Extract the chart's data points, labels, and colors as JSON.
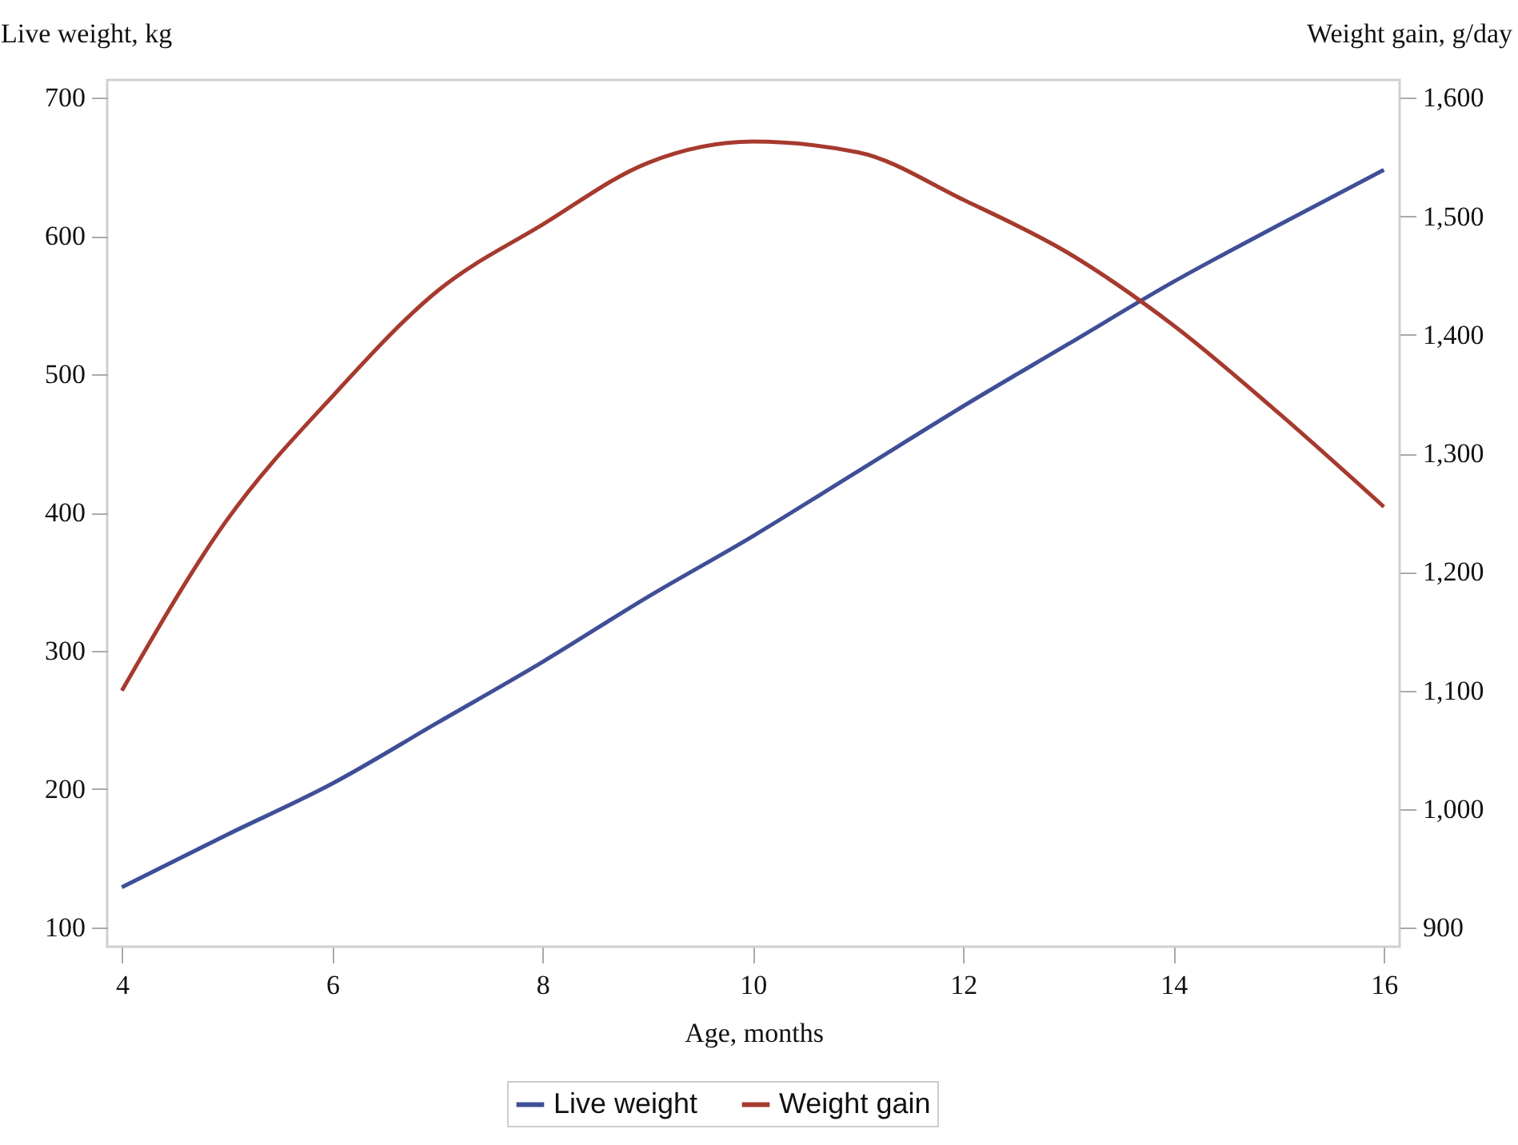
{
  "chart_data": {
    "type": "line",
    "xlabel": "Age, months",
    "ylabel": "Live weight, kg",
    "y2label": "Weight gain, g/day",
    "x": [
      4,
      5,
      6,
      7,
      8,
      9,
      10,
      11,
      12,
      13,
      14,
      15,
      16
    ],
    "series": [
      {
        "name": "Live weight",
        "color": "#3f4f97",
        "values": [
          129,
          167,
          204,
          248,
          292,
          339,
          383,
          430,
          477,
          522,
          567,
          608,
          648
        ]
      },
      {
        "name": "Weight gain",
        "color": "#a63a2e",
        "axis": "y2",
        "values": [
          1100,
          1244,
          1348,
          1437,
          1493,
          1545,
          1563,
          1554,
          1514,
          1469,
          1408,
          1334,
          1255
        ]
      }
    ],
    "xlim": [
      3.86,
      16.15
    ],
    "xticks": [
      4,
      6,
      8,
      10,
      12,
      14,
      16
    ],
    "ylim": [
      86,
      713
    ],
    "yticks": [
      100,
      200,
      300,
      400,
      500,
      600,
      700
    ],
    "y2lim": [
      884,
      1615
    ],
    "y2ticks": [
      {
        "value": 900,
        "label": "900"
      },
      {
        "value": 1000,
        "label": "1,000"
      },
      {
        "value": 1100,
        "label": "1,100"
      },
      {
        "value": 1200,
        "label": "1,200"
      },
      {
        "value": 1300,
        "label": "1,300"
      },
      {
        "value": 1400,
        "label": "1,400"
      },
      {
        "value": 1500,
        "label": "1,500"
      },
      {
        "value": 1600,
        "label": "1,600"
      }
    ],
    "legend": "bottom"
  }
}
